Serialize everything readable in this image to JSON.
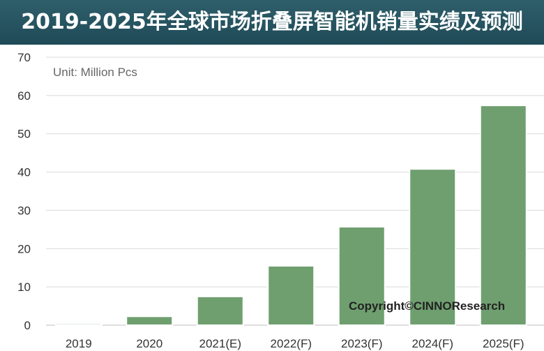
{
  "chart_data": {
    "type": "bar",
    "title": "2019-2025年全球市场折叠屏智能机销量实绩及预测",
    "unit_label": "Unit: Million Pcs",
    "copyright": "Copyright©CINNOResearch",
    "categories": [
      "2019",
      "2020",
      "2021(E)",
      "2022(F)",
      "2023(F)",
      "2024(F)",
      "2025(F)"
    ],
    "values": [
      0.4,
      2.3,
      7.5,
      15.5,
      25.7,
      40.8,
      57.4
    ],
    "ylim": [
      0,
      70
    ],
    "yticks": [
      0,
      10,
      20,
      30,
      40,
      50,
      60,
      70
    ],
    "grid": true,
    "xlabel": "",
    "ylabel": "",
    "colors": {
      "bar": "#6f9f6f",
      "bar_edge": "#5b8a5b",
      "grid": "#d9d9d9",
      "title_bg": "#275560"
    }
  }
}
